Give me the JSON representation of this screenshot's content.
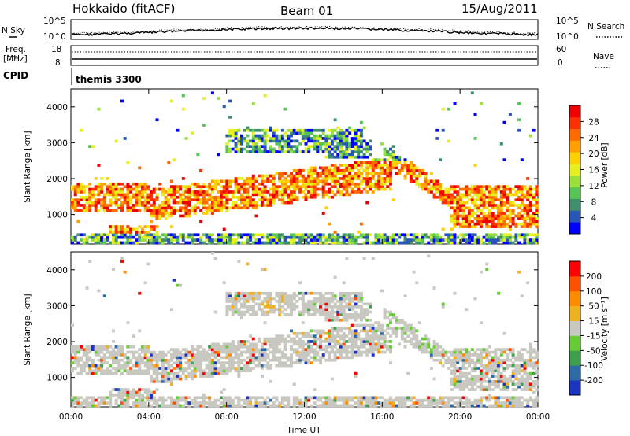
{
  "header": {
    "station": "Hokkaido (fitACF)",
    "beam": "Beam 01",
    "date": "15/Aug/2011"
  },
  "noise_panel": {
    "left_label": "N.Sky",
    "right_label": "N.Search",
    "left_ticks": [
      "10^5",
      "10^0"
    ],
    "right_ticks": [
      "10^5",
      "10^0"
    ]
  },
  "freq_panel": {
    "left_label_1": "Freq.",
    "left_label_2": "[MHz]",
    "left_ticks": [
      "18",
      "8"
    ],
    "right_label": "Nave",
    "right_ticks": [
      "60",
      "0"
    ]
  },
  "cpid_panel": {
    "label": "CPID",
    "value": "themis 3300"
  },
  "chart_data": [
    {
      "type": "heatmap",
      "name": "power",
      "ylabel": "Slant Range [km]",
      "ylim": [
        180,
        4500
      ],
      "yticks": [
        1000,
        2000,
        3000,
        4000
      ],
      "xlim": [
        0,
        24
      ],
      "colorbar": {
        "label": "Power [dB]",
        "ticks": [
          "28",
          "24",
          "20",
          "16",
          "12",
          "8",
          "4"
        ],
        "colors": [
          "#0000ff",
          "#2856b8",
          "#3f8e6c",
          "#55c555",
          "#9adf3a",
          "#e8ef20",
          "#ffd000",
          "#ffa000",
          "#ff6a00",
          "#ff3000",
          "#ee0000"
        ]
      }
    },
    {
      "type": "heatmap",
      "name": "velocity",
      "ylabel": "Slant Range [km]",
      "ylim": [
        180,
        4500
      ],
      "yticks": [
        1000,
        2000,
        3000,
        4000
      ],
      "xlim": [
        0,
        24
      ],
      "xlabel": "Time UT",
      "xticks": [
        "00:00",
        "04:00",
        "08:00",
        "12:00",
        "16:00",
        "20:00",
        "00:00"
      ],
      "colorbar": {
        "label": "Velocity [m s⁻¹]",
        "ticks": [
          "200",
          "100",
          "50",
          "15",
          "-15",
          "-50",
          "-100",
          "-200"
        ],
        "colors": [
          "#1c34c0",
          "#2c6aa8",
          "#3aa04a",
          "#66cc33",
          "#c8c8c0",
          "#f0b020",
          "#ff8c00",
          "#ff5000",
          "#ff0000"
        ]
      }
    }
  ]
}
